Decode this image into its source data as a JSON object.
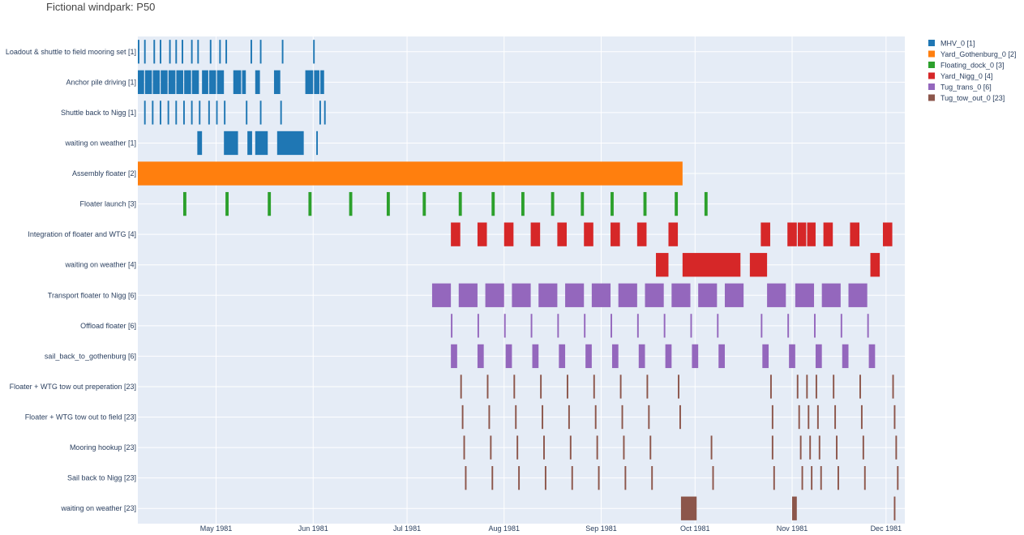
{
  "chart_data": {
    "type": "gantt",
    "title": "Fictional windpark: P50",
    "x_range": [
      "1981-04-06",
      "1981-12-07"
    ],
    "x_ticks": [
      {
        "date": "1981-05-01",
        "label": "May 1981"
      },
      {
        "date": "1981-06-01",
        "label": "Jun 1981"
      },
      {
        "date": "1981-07-01",
        "label": "Jul 1981"
      },
      {
        "date": "1981-08-01",
        "label": "Aug 1981"
      },
      {
        "date": "1981-09-01",
        "label": "Sep 1981"
      },
      {
        "date": "1981-10-01",
        "label": "Oct 1981"
      },
      {
        "date": "1981-11-01",
        "label": "Nov 1981"
      },
      {
        "date": "1981-12-01",
        "label": "Dec 1981"
      }
    ],
    "rows": [
      "Loadout & shuttle to field mooring set [1]",
      "Anchor pile driving [1]",
      "Shuttle back to Nigg [1]",
      "waiting on weather [1]",
      "Assembly floater [2]",
      "Floater launch [3]",
      "Integration of floater and WTG [4]",
      "waiting on weather [4]",
      "Transport floater to Nigg [6]",
      "Offload floater [6]",
      "sail_back_to_gothenburg [6]",
      "Floater + WTG tow out preperation [23]",
      "Floater + WTG tow out to field [23]",
      "Mooring hookup [23]",
      "Sail back to Nigg [23]",
      "waiting on weather [23]"
    ],
    "legend_position": "right",
    "legend": [
      {
        "name": "MHV_0 [1]",
        "color": "#1f77b4"
      },
      {
        "name": "Yard_Gothenburg_0 [2]",
        "color": "#ff7f0e"
      },
      {
        "name": "Floating_dock_0 [3]",
        "color": "#2ca02c"
      },
      {
        "name": "Yard_Nigg_0 [4]",
        "color": "#d62728"
      },
      {
        "name": "Tug_trans_0 [6]",
        "color": "#9467bd"
      },
      {
        "name": "Tug_tow_out_0 [23]",
        "color": "#8c564b"
      }
    ],
    "series": [
      {
        "row": 0,
        "color": "#1f77b4",
        "tasks": [
          [
            "1981-04-06",
            "1981-04-06.5"
          ],
          [
            "1981-04-08",
            "1981-04-08.5"
          ],
          [
            "1981-04-11",
            "1981-04-11.5"
          ],
          [
            "1981-04-13",
            "1981-04-13.5"
          ],
          [
            "1981-04-16",
            "1981-04-16.5"
          ],
          [
            "1981-04-18",
            "1981-04-18.5"
          ],
          [
            "1981-04-20",
            "1981-04-20.5"
          ],
          [
            "1981-04-23",
            "1981-04-23.5"
          ],
          [
            "1981-04-25",
            "1981-04-25.5"
          ],
          [
            "1981-04-29",
            "1981-04-29.5"
          ],
          [
            "1981-05-02",
            "1981-05-02.5"
          ],
          [
            "1981-05-04",
            "1981-05-04.5"
          ],
          [
            "1981-05-12",
            "1981-05-12.5"
          ],
          [
            "1981-05-15",
            "1981-05-15.5"
          ],
          [
            "1981-05-22",
            "1981-05-22.5"
          ],
          [
            "1981-06-01",
            "1981-06-01.5"
          ]
        ]
      },
      {
        "row": 1,
        "color": "#1f77b4",
        "tasks": [
          [
            "1981-04-06",
            "1981-04-08"
          ],
          [
            "1981-04-08.3",
            "1981-04-10.5"
          ],
          [
            "1981-04-10.8",
            "1981-04-13"
          ],
          [
            "1981-04-13.3",
            "1981-04-15.5"
          ],
          [
            "1981-04-15.8",
            "1981-04-18"
          ],
          [
            "1981-04-18.3",
            "1981-04-20.5"
          ],
          [
            "1981-04-20.8",
            "1981-04-23"
          ],
          [
            "1981-04-23.3",
            "1981-04-25.5"
          ],
          [
            "1981-04-26.5",
            "1981-04-28.5"
          ],
          [
            "1981-04-28.8",
            "1981-05-01"
          ],
          [
            "1981-05-01.3",
            "1981-05-03.5"
          ],
          [
            "1981-05-06.5",
            "1981-05-09"
          ],
          [
            "1981-05-09.3",
            "1981-05-10.5"
          ],
          [
            "1981-05-13.5",
            "1981-05-15"
          ],
          [
            "1981-05-19.5",
            "1981-05-21.5"
          ],
          [
            "1981-05-29.5",
            "1981-06-01"
          ],
          [
            "1981-06-01.3",
            "1981-06-03"
          ],
          [
            "1981-06-03.3",
            "1981-06-04.5"
          ]
        ]
      },
      {
        "row": 2,
        "color": "#1f77b4",
        "tasks": [
          [
            "1981-04-08",
            "1981-04-08.5"
          ],
          [
            "1981-04-10.5",
            "1981-04-11"
          ],
          [
            "1981-04-13",
            "1981-04-13.5"
          ],
          [
            "1981-04-15.5",
            "1981-04-16"
          ],
          [
            "1981-04-18",
            "1981-04-18.5"
          ],
          [
            "1981-04-20.5",
            "1981-04-21"
          ],
          [
            "1981-04-23",
            "1981-04-23.5"
          ],
          [
            "1981-04-25.5",
            "1981-04-26"
          ],
          [
            "1981-04-28.5",
            "1981-04-29"
          ],
          [
            "1981-05-01",
            "1981-05-01.5"
          ],
          [
            "1981-05-03.5",
            "1981-05-04"
          ],
          [
            "1981-05-10.5",
            "1981-05-11"
          ],
          [
            "1981-05-15",
            "1981-05-15.5"
          ],
          [
            "1981-05-21.5",
            "1981-05-22"
          ],
          [
            "1981-06-03",
            "1981-06-03.5"
          ],
          [
            "1981-06-04.5",
            "1981-06-05"
          ]
        ]
      },
      {
        "row": 3,
        "color": "#1f77b4",
        "tasks": [
          [
            "1981-04-25",
            "1981-04-26.5"
          ],
          [
            "1981-05-03.5",
            "1981-05-08"
          ],
          [
            "1981-05-11",
            "1981-05-12.5"
          ],
          [
            "1981-05-13.5",
            "1981-05-17.5"
          ],
          [
            "1981-05-20.5",
            "1981-05-29"
          ],
          [
            "1981-06-02",
            "1981-06-02.5"
          ]
        ]
      },
      {
        "row": 4,
        "color": "#ff7f0e",
        "tasks": [
          [
            "1981-04-06",
            "1981-09-27"
          ]
        ]
      },
      {
        "row": 5,
        "color": "#2ca02c",
        "tasks": [
          [
            "1981-04-20.5",
            "1981-04-21.5"
          ],
          [
            "1981-05-04",
            "1981-05-05"
          ],
          [
            "1981-05-17.5",
            "1981-05-18.5"
          ],
          [
            "1981-05-30.5",
            "1981-05-31.5"
          ],
          [
            "1981-06-12.5",
            "1981-06-13.5"
          ],
          [
            "1981-06-24.5",
            "1981-06-25.5"
          ],
          [
            "1981-07-06",
            "1981-07-07"
          ],
          [
            "1981-07-17.5",
            "1981-07-18.5"
          ],
          [
            "1981-07-28",
            "1981-07-29"
          ],
          [
            "1981-08-06.5",
            "1981-08-07.5"
          ],
          [
            "1981-08-16",
            "1981-08-17"
          ],
          [
            "1981-08-25.5",
            "1981-08-26.5"
          ],
          [
            "1981-09-04",
            "1981-09-05"
          ],
          [
            "1981-09-14.5",
            "1981-09-15.5"
          ],
          [
            "1981-09-24.5",
            "1981-09-25.5"
          ],
          [
            "1981-10-04",
            "1981-10-05"
          ]
        ]
      },
      {
        "row": 6,
        "color": "#d62728",
        "tasks": [
          [
            "1981-07-15",
            "1981-07-18"
          ],
          [
            "1981-07-23.5",
            "1981-07-26.5"
          ],
          [
            "1981-08-01",
            "1981-08-04"
          ],
          [
            "1981-08-09.5",
            "1981-08-12.5"
          ],
          [
            "1981-08-18",
            "1981-08-21"
          ],
          [
            "1981-08-26.5",
            "1981-08-29.5"
          ],
          [
            "1981-09-04",
            "1981-09-07"
          ],
          [
            "1981-09-12.5",
            "1981-09-15.5"
          ],
          [
            "1981-09-22.5",
            "1981-09-25.5"
          ],
          [
            "1981-10-22",
            "1981-10-25"
          ],
          [
            "1981-10-30.5",
            "1981-11-02.5"
          ],
          [
            "1981-11-02.8",
            "1981-11-05.5"
          ],
          [
            "1981-11-05.8",
            "1981-11-08.5"
          ],
          [
            "1981-11-11",
            "1981-11-14"
          ],
          [
            "1981-11-19.5",
            "1981-11-22.5"
          ],
          [
            "1981-11-30",
            "1981-12-03"
          ]
        ]
      },
      {
        "row": 7,
        "color": "#d62728",
        "tasks": [
          [
            "1981-09-18.5",
            "1981-09-22.5"
          ],
          [
            "1981-09-27",
            "1981-10-15.5"
          ],
          [
            "1981-10-18.5",
            "1981-10-24"
          ],
          [
            "1981-11-26",
            "1981-11-29"
          ]
        ]
      },
      {
        "row": 8,
        "color": "#9467bd",
        "tasks": [
          [
            "1981-07-09",
            "1981-07-15"
          ],
          [
            "1981-07-17.5",
            "1981-07-23.5"
          ],
          [
            "1981-07-26",
            "1981-08-01"
          ],
          [
            "1981-08-03.5",
            "1981-08-09.5"
          ],
          [
            "1981-08-12",
            "1981-08-18"
          ],
          [
            "1981-08-20.5",
            "1981-08-26.5"
          ],
          [
            "1981-08-29",
            "1981-09-04"
          ],
          [
            "1981-09-06.5",
            "1981-09-12.5"
          ],
          [
            "1981-09-15",
            "1981-09-21"
          ],
          [
            "1981-09-23.5",
            "1981-09-29.5"
          ],
          [
            "1981-10-02",
            "1981-10-08"
          ],
          [
            "1981-10-10.5",
            "1981-10-16.5"
          ],
          [
            "1981-10-24",
            "1981-10-30"
          ],
          [
            "1981-11-02",
            "1981-11-08"
          ],
          [
            "1981-11-10.5",
            "1981-11-16.5"
          ],
          [
            "1981-11-19",
            "1981-11-25"
          ]
        ]
      },
      {
        "row": 9,
        "color": "#9467bd",
        "tasks": [
          [
            "1981-07-15",
            "1981-07-15.5"
          ],
          [
            "1981-07-23.5",
            "1981-07-24"
          ],
          [
            "1981-08-01",
            "1981-08-01.5"
          ],
          [
            "1981-08-09.5",
            "1981-08-10"
          ],
          [
            "1981-08-18",
            "1981-08-18.5"
          ],
          [
            "1981-08-26.5",
            "1981-08-27"
          ],
          [
            "1981-09-04",
            "1981-09-04.5"
          ],
          [
            "1981-09-12.5",
            "1981-09-13"
          ],
          [
            "1981-09-21",
            "1981-09-21.5"
          ],
          [
            "1981-09-29.5",
            "1981-09-30"
          ],
          [
            "1981-10-08",
            "1981-10-08.5"
          ],
          [
            "1981-10-22",
            "1981-10-22.5"
          ],
          [
            "1981-10-30.5",
            "1981-10-31"
          ],
          [
            "1981-11-08",
            "1981-11-08.5"
          ],
          [
            "1981-11-16.5",
            "1981-11-17"
          ],
          [
            "1981-11-25",
            "1981-11-25.5"
          ]
        ]
      },
      {
        "row": 10,
        "color": "#9467bd",
        "tasks": [
          [
            "1981-07-15",
            "1981-07-17"
          ],
          [
            "1981-07-23.5",
            "1981-07-25.5"
          ],
          [
            "1981-08-01.5",
            "1981-08-03.5"
          ],
          [
            "1981-08-10",
            "1981-08-12"
          ],
          [
            "1981-08-18.5",
            "1981-08-20.5"
          ],
          [
            "1981-08-27",
            "1981-08-29"
          ],
          [
            "1981-09-04.5",
            "1981-09-06.5"
          ],
          [
            "1981-09-13",
            "1981-09-15"
          ],
          [
            "1981-09-21.5",
            "1981-09-23.5"
          ],
          [
            "1981-09-30",
            "1981-10-02"
          ],
          [
            "1981-10-08.5",
            "1981-10-10.5"
          ],
          [
            "1981-10-22.5",
            "1981-10-24.5"
          ],
          [
            "1981-10-31",
            "1981-11-02"
          ],
          [
            "1981-11-08.5",
            "1981-11-10.5"
          ],
          [
            "1981-11-17",
            "1981-11-19"
          ],
          [
            "1981-11-25.5",
            "1981-11-27.5"
          ]
        ]
      },
      {
        "row": 11,
        "color": "#8c564b",
        "tasks": [
          [
            "1981-07-18",
            "1981-07-18.5"
          ],
          [
            "1981-07-26.5",
            "1981-07-27"
          ],
          [
            "1981-08-04",
            "1981-08-04.5"
          ],
          [
            "1981-08-12.5",
            "1981-08-13"
          ],
          [
            "1981-08-21",
            "1981-08-21.5"
          ],
          [
            "1981-08-29.5",
            "1981-08-30"
          ],
          [
            "1981-09-07",
            "1981-09-07.5"
          ],
          [
            "1981-09-15.5",
            "1981-09-16"
          ],
          [
            "1981-09-25.5",
            "1981-09-26"
          ],
          [
            "1981-10-25",
            "1981-10-25.5"
          ],
          [
            "1981-11-02.5",
            "1981-11-03"
          ],
          [
            "1981-11-05.5",
            "1981-11-06"
          ],
          [
            "1981-11-08.5",
            "1981-11-09"
          ],
          [
            "1981-11-14",
            "1981-11-14.5"
          ],
          [
            "1981-11-22.5",
            "1981-11-23"
          ],
          [
            "1981-12-03",
            "1981-12-03.5"
          ]
        ]
      },
      {
        "row": 12,
        "color": "#8c564b",
        "tasks": [
          [
            "1981-07-18.5",
            "1981-07-19"
          ],
          [
            "1981-07-27",
            "1981-07-27.5"
          ],
          [
            "1981-08-04.5",
            "1981-08-05"
          ],
          [
            "1981-08-13",
            "1981-08-13.5"
          ],
          [
            "1981-08-21.5",
            "1981-08-22"
          ],
          [
            "1981-08-30",
            "1981-08-30.5"
          ],
          [
            "1981-09-07.5",
            "1981-09-08"
          ],
          [
            "1981-09-16",
            "1981-09-16.5"
          ],
          [
            "1981-09-26",
            "1981-09-26.5"
          ],
          [
            "1981-10-25.5",
            "1981-10-26"
          ],
          [
            "1981-11-03",
            "1981-11-03.5"
          ],
          [
            "1981-11-06",
            "1981-11-06.5"
          ],
          [
            "1981-11-09",
            "1981-11-09.5"
          ],
          [
            "1981-11-14.5",
            "1981-11-15"
          ],
          [
            "1981-11-23",
            "1981-11-23.5"
          ],
          [
            "1981-12-03.5",
            "1981-12-04"
          ]
        ]
      },
      {
        "row": 13,
        "color": "#8c564b",
        "tasks": [
          [
            "1981-07-19",
            "1981-07-19.5"
          ],
          [
            "1981-07-27.5",
            "1981-07-28"
          ],
          [
            "1981-08-05",
            "1981-08-05.5"
          ],
          [
            "1981-08-13.5",
            "1981-08-14"
          ],
          [
            "1981-08-22",
            "1981-08-22.5"
          ],
          [
            "1981-08-30.5",
            "1981-08-31"
          ],
          [
            "1981-09-08",
            "1981-09-08.5"
          ],
          [
            "1981-09-16.5",
            "1981-09-17"
          ],
          [
            "1981-10-06",
            "1981-10-06.5"
          ],
          [
            "1981-10-25.5",
            "1981-10-26"
          ],
          [
            "1981-11-03.5",
            "1981-11-04"
          ],
          [
            "1981-11-06.5",
            "1981-11-07"
          ],
          [
            "1981-11-09.5",
            "1981-11-10"
          ],
          [
            "1981-11-15",
            "1981-11-15.5"
          ],
          [
            "1981-11-23.5",
            "1981-11-24"
          ],
          [
            "1981-12-04",
            "1981-12-04.5"
          ]
        ]
      },
      {
        "row": 14,
        "color": "#8c564b",
        "tasks": [
          [
            "1981-07-19.5",
            "1981-07-20"
          ],
          [
            "1981-07-28",
            "1981-07-28.5"
          ],
          [
            "1981-08-05.5",
            "1981-08-06"
          ],
          [
            "1981-08-14",
            "1981-08-14.5"
          ],
          [
            "1981-08-22.5",
            "1981-08-23"
          ],
          [
            "1981-08-31",
            "1981-08-31.5"
          ],
          [
            "1981-09-08.5",
            "1981-09-09"
          ],
          [
            "1981-09-17",
            "1981-09-17.5"
          ],
          [
            "1981-10-06.5",
            "1981-10-07"
          ],
          [
            "1981-10-26",
            "1981-10-26.5"
          ],
          [
            "1981-11-04",
            "1981-11-04.5"
          ],
          [
            "1981-11-07",
            "1981-11-07.5"
          ],
          [
            "1981-11-10",
            "1981-11-10.5"
          ],
          [
            "1981-11-15.5",
            "1981-11-16"
          ],
          [
            "1981-11-24",
            "1981-11-24.5"
          ],
          [
            "1981-12-04.5",
            "1981-12-05"
          ]
        ]
      },
      {
        "row": 15,
        "color": "#8c564b",
        "tasks": [
          [
            "1981-09-26.5",
            "1981-10-01.5"
          ],
          [
            "1981-11-01",
            "1981-11-02.5"
          ],
          [
            "1981-12-03.5",
            "1981-12-04"
          ]
        ]
      }
    ]
  }
}
